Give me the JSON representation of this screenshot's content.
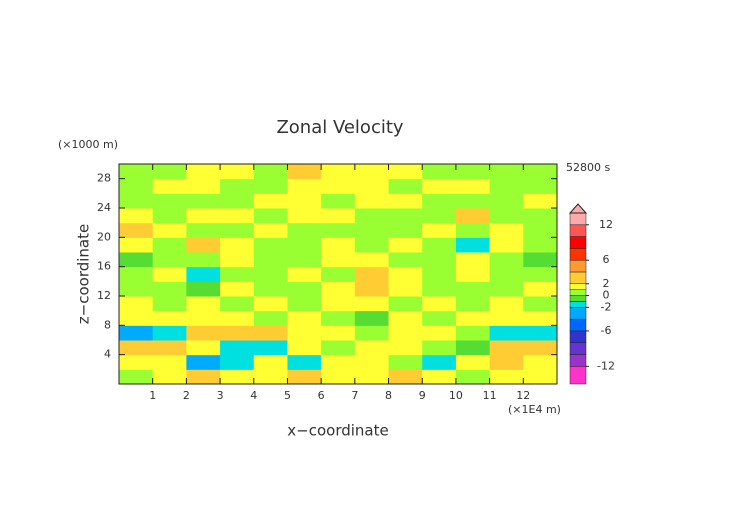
{
  "chart_data": {
    "type": "contour",
    "title": "Zonal Velocity",
    "time_label": "52800 s",
    "x_label": "x−coordinate",
    "y_label": "z−coordinate",
    "x_unit": "(×1E4 m)",
    "y_unit": "(×1000 m)",
    "x": [
      0.5,
      1.5,
      2.5,
      3.5,
      4.5,
      5.5,
      6.5,
      7.5,
      8.5,
      9.5,
      10.5,
      11.5,
      12.5
    ],
    "y": [
      1,
      3,
      5,
      7,
      9,
      11,
      13,
      15,
      17,
      19,
      21,
      23,
      25,
      27,
      29
    ],
    "z": [
      [
        0.5,
        1.5,
        3,
        1.5,
        1.5,
        3,
        1.5,
        1.5,
        3,
        1.5,
        0.5,
        1.5,
        1.5
      ],
      [
        1.5,
        1.5,
        -3,
        -1.5,
        1.5,
        -1.5,
        1.5,
        1.5,
        0.5,
        -1.5,
        1.5,
        3,
        1.5
      ],
      [
        3,
        3,
        1.5,
        -1.5,
        -1.5,
        1.5,
        0.5,
        1.5,
        1.5,
        0.5,
        -0.5,
        3,
        3
      ],
      [
        -3,
        -1.5,
        3,
        3,
        3,
        1.5,
        1.5,
        0.5,
        1.5,
        1.5,
        0.5,
        -1.5,
        -1.5
      ],
      [
        1.5,
        1.5,
        1.5,
        1.5,
        0.5,
        1.5,
        0.5,
        -0.5,
        1.5,
        0.5,
        1.5,
        1.5,
        1.5
      ],
      [
        1.5,
        0.5,
        1.5,
        0.5,
        1.5,
        0.5,
        1.5,
        1.5,
        0.5,
        1.5,
        0.5,
        1.5,
        0.5
      ],
      [
        0.5,
        0.5,
        -0.5,
        1.5,
        0.5,
        0.5,
        1.5,
        3,
        1.5,
        0.5,
        0.5,
        0.5,
        1.5
      ],
      [
        0.5,
        1.5,
        -1.5,
        0.5,
        0.5,
        1.5,
        0.5,
        3,
        1.5,
        0.5,
        1.5,
        0.5,
        0.5
      ],
      [
        -0.5,
        0.5,
        0.5,
        1.5,
        0.5,
        0.5,
        1.5,
        1.5,
        0.5,
        0.5,
        1.5,
        0.5,
        -0.5
      ],
      [
        1.5,
        0.5,
        3,
        1.5,
        0.5,
        0.5,
        1.5,
        0.5,
        1.5,
        0.5,
        -1.5,
        1.5,
        0.5
      ],
      [
        3,
        1.5,
        0.5,
        0.5,
        1.5,
        0.5,
        0.5,
        0.5,
        0.5,
        1.5,
        0.5,
        1.5,
        0.5
      ],
      [
        1.5,
        0.5,
        1.5,
        1.5,
        0.5,
        1.5,
        1.5,
        0.5,
        0.5,
        0.5,
        3,
        0.5,
        0.5
      ],
      [
        0.5,
        0.5,
        0.5,
        0.5,
        1.5,
        1.5,
        0.5,
        1.5,
        1.5,
        0.5,
        0.5,
        0.5,
        1.5
      ],
      [
        0.5,
        1.5,
        1.5,
        0.5,
        0.5,
        1.5,
        1.5,
        1.5,
        0.5,
        1.5,
        1.5,
        0.5,
        0.5
      ],
      [
        0.5,
        0.5,
        1.5,
        1.5,
        0.5,
        3,
        1.5,
        1.5,
        1.5,
        0.5,
        0.5,
        0.5,
        0.5
      ]
    ],
    "xlim": [
      0,
      13
    ],
    "ylim": [
      0,
      30
    ],
    "xticks": [
      1,
      2,
      3,
      4,
      5,
      6,
      7,
      8,
      9,
      10,
      11,
      12
    ],
    "yticks": [
      4,
      8,
      12,
      16,
      20,
      24,
      28
    ],
    "colorbar": {
      "levels": [
        -15,
        -12,
        -10,
        -8,
        -6,
        -4,
        -2,
        -1,
        0,
        1,
        2,
        4,
        6,
        8,
        10,
        12,
        14
      ],
      "colors": [
        "#ff33cc",
        "#9933cc",
        "#6633cc",
        "#3333cc",
        "#0066ff",
        "#00aaff",
        "#00e0e0",
        "#55dd33",
        "#99ff33",
        "#ffff33",
        "#ffcc33",
        "#ff9933",
        "#ff3300",
        "#ff0000",
        "#ff5555",
        "#ffaaaa"
      ],
      "ticks": [
        12,
        6,
        2,
        0,
        -2,
        -6,
        -12
      ]
    }
  }
}
